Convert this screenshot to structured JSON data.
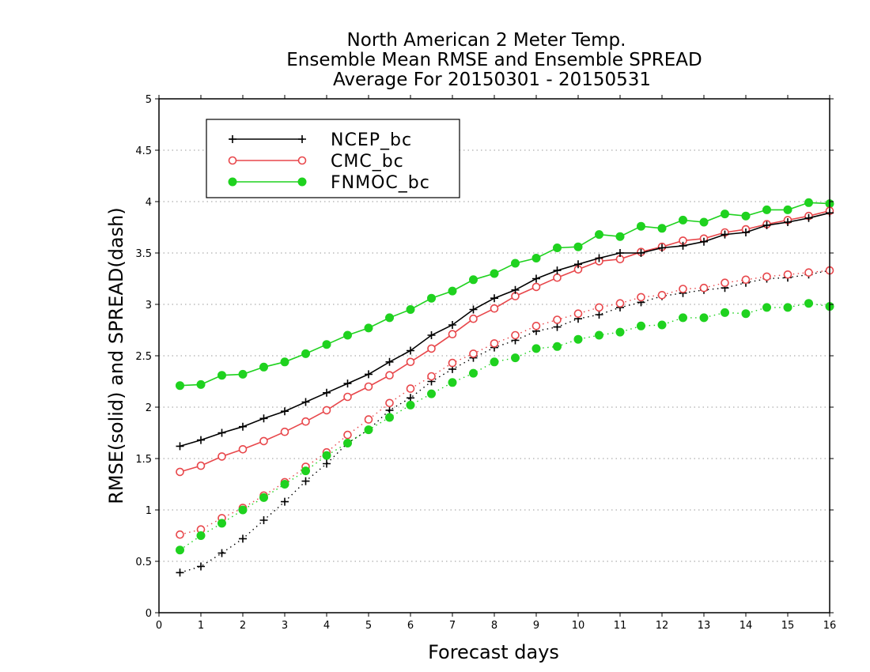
{
  "chart_data": {
    "type": "line",
    "title": [
      "North American 2 Meter Temp.",
      "Ensemble Mean RMSE and Ensemble SPREAD",
      "Average For 20150301 - 20150531"
    ],
    "xlabel": "Forecast days",
    "ylabel": "RMSE(solid) and SPREAD(dash)",
    "xlim": [
      0,
      16
    ],
    "ylim": [
      0,
      5
    ],
    "xticks": [
      "0",
      "1",
      "2",
      "3",
      "4",
      "5",
      "6",
      "7",
      "8",
      "9",
      "10",
      "11",
      "12",
      "13",
      "14",
      "15",
      "16"
    ],
    "yticks": [
      "0",
      "0.5",
      "1",
      "1.5",
      "2",
      "2.5",
      "3",
      "3.5",
      "4",
      "4.5",
      "5"
    ],
    "grid": true,
    "legend_position": "top-left",
    "x": [
      0.5,
      1,
      1.5,
      2,
      2.5,
      3,
      3.5,
      4,
      4.5,
      5,
      5.5,
      6,
      6.5,
      7,
      7.5,
      8,
      8.5,
      9,
      9.5,
      10,
      10.5,
      11,
      11.5,
      12,
      12.5,
      13,
      13.5,
      14,
      14.5,
      15,
      15.5,
      16
    ],
    "series": [
      {
        "name": "NCEP_bc",
        "color": "#000000",
        "marker": "plus",
        "rmse": [
          1.62,
          1.68,
          1.75,
          1.81,
          1.89,
          1.96,
          2.05,
          2.14,
          2.23,
          2.32,
          2.44,
          2.55,
          2.7,
          2.8,
          2.95,
          3.06,
          3.14,
          3.25,
          3.33,
          3.39,
          3.45,
          3.5,
          3.5,
          3.55,
          3.57,
          3.61,
          3.68,
          3.7,
          3.77,
          3.8,
          3.84,
          3.89
        ],
        "spread": [
          0.39,
          0.45,
          0.58,
          0.72,
          0.9,
          1.08,
          1.28,
          1.45,
          1.65,
          1.78,
          1.97,
          2.09,
          2.25,
          2.37,
          2.48,
          2.58,
          2.65,
          2.74,
          2.78,
          2.86,
          2.9,
          2.97,
          3.02,
          3.08,
          3.11,
          3.14,
          3.16,
          3.21,
          3.25,
          3.26,
          3.29,
          3.33
        ]
      },
      {
        "name": "CMC_bc",
        "color": "#e8474b",
        "marker": "open-circle",
        "rmse": [
          1.37,
          1.43,
          1.52,
          1.59,
          1.67,
          1.76,
          1.86,
          1.97,
          2.1,
          2.2,
          2.31,
          2.44,
          2.57,
          2.71,
          2.86,
          2.96,
          3.08,
          3.17,
          3.26,
          3.34,
          3.42,
          3.44,
          3.51,
          3.56,
          3.62,
          3.64,
          3.7,
          3.73,
          3.78,
          3.82,
          3.86,
          3.91
        ],
        "spread": [
          0.76,
          0.81,
          0.92,
          1.02,
          1.14,
          1.27,
          1.42,
          1.56,
          1.73,
          1.88,
          2.04,
          2.18,
          2.3,
          2.43,
          2.52,
          2.62,
          2.7,
          2.79,
          2.85,
          2.91,
          2.97,
          3.01,
          3.07,
          3.09,
          3.15,
          3.16,
          3.21,
          3.24,
          3.27,
          3.29,
          3.31,
          3.33
        ]
      },
      {
        "name": "FNMOC_bc",
        "color": "#1fd21f",
        "marker": "filled-circle",
        "rmse": [
          2.21,
          2.22,
          2.31,
          2.32,
          2.39,
          2.44,
          2.52,
          2.61,
          2.7,
          2.77,
          2.87,
          2.95,
          3.06,
          3.13,
          3.24,
          3.3,
          3.4,
          3.45,
          3.55,
          3.56,
          3.68,
          3.66,
          3.76,
          3.74,
          3.82,
          3.8,
          3.88,
          3.86,
          3.92,
          3.92,
          3.99,
          3.98
        ],
        "spread": [
          0.61,
          0.75,
          0.87,
          1.0,
          1.12,
          1.25,
          1.38,
          1.53,
          1.65,
          1.78,
          1.9,
          2.02,
          2.13,
          2.24,
          2.33,
          2.44,
          2.48,
          2.57,
          2.59,
          2.66,
          2.7,
          2.73,
          2.79,
          2.8,
          2.87,
          2.87,
          2.92,
          2.91,
          2.97,
          2.97,
          3.01,
          2.98
        ]
      }
    ]
  }
}
